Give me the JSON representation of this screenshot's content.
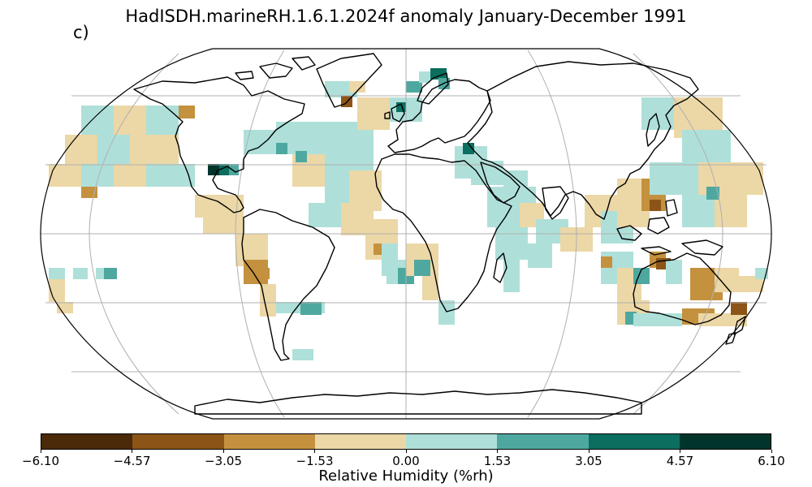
{
  "title": "HadISDH.marineRH.1.6.1.2024f anomaly January-December 1991",
  "panel_label": "c)",
  "colorbar": {
    "label": "Relative Humidity (%rh)",
    "ticks": [
      "−6.10",
      "−4.57",
      "−3.05",
      "−1.53",
      "0.00",
      "1.53",
      "3.05",
      "4.57",
      "6.10"
    ],
    "colors": [
      "#4a2a08",
      "#8c5416",
      "#c4913f",
      "#ecd7a6",
      "#aee0d9",
      "#4fa8a0",
      "#0b6e5f",
      "#01352c"
    ]
  },
  "map": {
    "projection": "Robinson",
    "background_color": "#ffffff",
    "coastline_color": "#000000",
    "gridline_color": "#b0b0b0"
  }
}
